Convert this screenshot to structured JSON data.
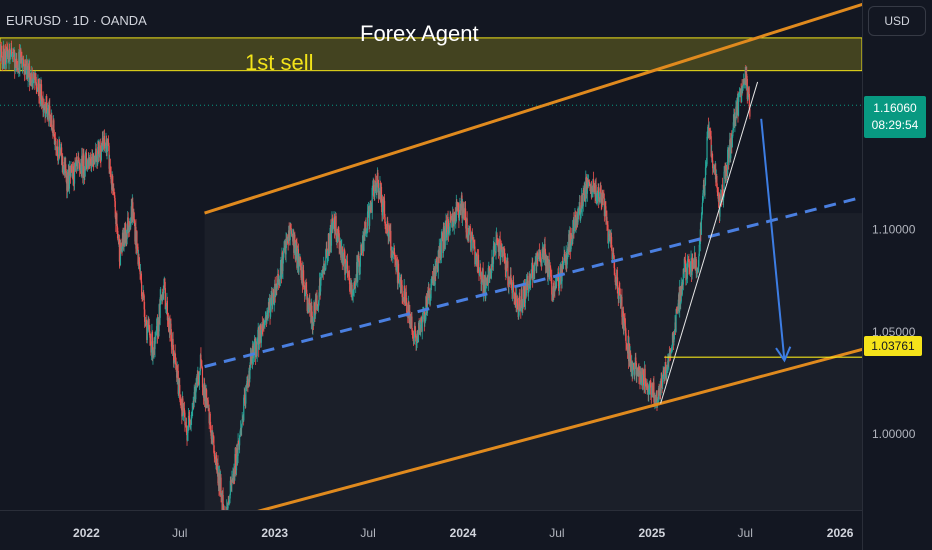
{
  "header": {
    "symbol": "EURUSD · 1D · OANDA",
    "currency": "USD"
  },
  "annotations": {
    "title": "Forex Agent",
    "zone_label": "1st sell"
  },
  "price_tag": {
    "price": "1.16060",
    "countdown": "08:29:54"
  },
  "level_tag": {
    "price": "1.03761"
  },
  "colors": {
    "background": "#131722",
    "candle_up": "#26a69a",
    "candle_down": "#ef5350",
    "channel": "#e08a1e",
    "midline": "#4a7fe0",
    "arrow": "#3d7de3",
    "zone": "#f2e31a",
    "price_tag": "#089981"
  },
  "chart_data": {
    "type": "candlestick",
    "title": "Forex Agent",
    "symbol": "EURUSD",
    "timeframe": "1D",
    "source": "OANDA",
    "ylim": [
      0.963,
      1.212
    ],
    "xlim": [
      "2021-06-01",
      "2026-06-30"
    ],
    "y_ticks": [
      1.0,
      1.05,
      1.1
    ],
    "y_tick_labels": [
      "1.00000",
      "1.05000",
      "1.10000"
    ],
    "x_ticks": [
      "2021-07-01",
      "2022-01-01",
      "2022-07-01",
      "2023-01-01",
      "2023-07-01",
      "2024-01-01",
      "2024-07-01",
      "2025-01-01",
      "2025-07-01",
      "2026-01-01"
    ],
    "x_tick_labels": [
      "Jul",
      "2022",
      "Jul",
      "2023",
      "Jul",
      "2024",
      "Jul",
      "2025",
      "Jul",
      "2026"
    ],
    "price_path": [
      [
        "2021-06-01",
        1.222
      ],
      [
        "2021-07-15",
        1.185
      ],
      [
        "2021-09-01",
        1.182
      ],
      [
        "2021-10-15",
        1.16
      ],
      [
        "2021-11-25",
        1.124
      ],
      [
        "2022-01-01",
        1.133
      ],
      [
        "2022-02-10",
        1.142
      ],
      [
        "2022-03-07",
        1.088
      ],
      [
        "2022-03-31",
        1.11
      ],
      [
        "2022-04-28",
        1.052
      ],
      [
        "2022-05-13",
        1.04
      ],
      [
        "2022-05-30",
        1.074
      ],
      [
        "2022-06-15",
        1.045
      ],
      [
        "2022-07-14",
        1.0
      ],
      [
        "2022-08-10",
        1.033
      ],
      [
        "2022-09-28",
        0.958
      ],
      [
        "2022-10-26",
        1.0
      ],
      [
        "2022-11-15",
        1.035
      ],
      [
        "2023-01-01",
        1.07
      ],
      [
        "2023-02-01",
        1.1
      ],
      [
        "2023-03-15",
        1.055
      ],
      [
        "2023-04-26",
        1.105
      ],
      [
        "2023-05-31",
        1.068
      ],
      [
        "2023-07-18",
        1.125
      ],
      [
        "2023-08-20",
        1.085
      ],
      [
        "2023-10-03",
        1.045
      ],
      [
        "2023-11-29",
        1.1
      ],
      [
        "2023-12-28",
        1.112
      ],
      [
        "2024-02-14",
        1.07
      ],
      [
        "2024-03-08",
        1.095
      ],
      [
        "2024-04-16",
        1.062
      ],
      [
        "2024-06-05",
        1.09
      ],
      [
        "2024-06-26",
        1.068
      ],
      [
        "2024-08-26",
        1.12
      ],
      [
        "2024-09-25",
        1.117
      ],
      [
        "2024-10-23",
        1.078
      ],
      [
        "2024-11-22",
        1.034
      ],
      [
        "2025-01-13",
        1.018
      ],
      [
        "2025-02-05",
        1.038
      ],
      [
        "2025-03-05",
        1.08
      ],
      [
        "2025-04-02",
        1.085
      ],
      [
        "2025-04-21",
        1.15
      ],
      [
        "2025-05-12",
        1.11
      ],
      [
        "2025-06-12",
        1.155
      ],
      [
        "2025-06-30",
        1.175
      ],
      [
        "2025-07-10",
        1.16
      ]
    ],
    "channel_upper": [
      [
        "2022-08-18",
        1.108
      ],
      [
        "2026-06-20",
        1.22
      ]
    ],
    "channel_lower": [
      [
        "2022-09-26",
        0.958
      ],
      [
        "2026-06-20",
        1.05
      ]
    ],
    "channel_midline": [
      [
        "2022-08-18",
        1.033
      ],
      [
        "2026-06-20",
        1.124
      ]
    ],
    "sell_zone": {
      "label": "1st sell",
      "from": "2021-06-01",
      "to": "2026-06-30",
      "top": 1.1935,
      "bottom": 1.1775
    },
    "level_line": {
      "from": "2025-01-25",
      "to": "2026-06-30",
      "price": 1.03761
    },
    "trend_line": [
      [
        "2025-01-18",
        1.015
      ],
      [
        "2025-07-25",
        1.172
      ]
    ],
    "forecast_arrow": [
      [
        "2025-08-01",
        1.154
      ],
      [
        "2025-09-15",
        1.036
      ]
    ],
    "current_price": 1.1606,
    "countdown": "08:29:54"
  }
}
